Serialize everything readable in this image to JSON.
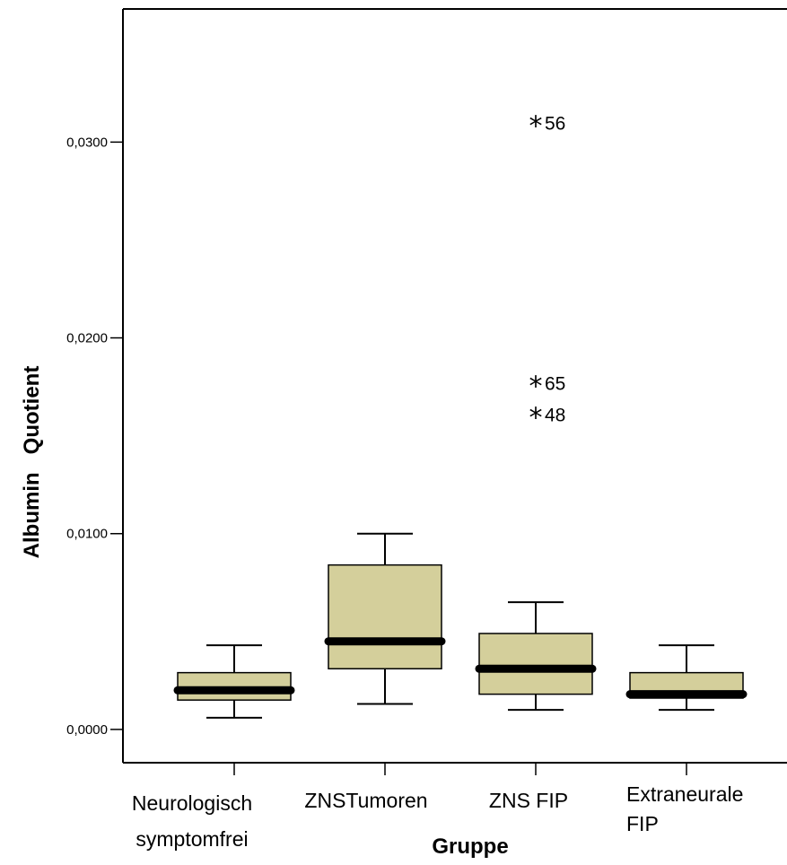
{
  "chart_data": {
    "type": "boxplot",
    "xlabel": "Gruppe",
    "ylabel": "Albumin   Quotient",
    "ylim": [
      -0.0017,
      0.0368
    ],
    "yticks": [
      0.0,
      0.01,
      0.02,
      0.03
    ],
    "ytick_labels": [
      "0,0000",
      "0,0100",
      "0,0200",
      "0,0300"
    ],
    "grid": false,
    "box_color": "#d4cf9b",
    "line_color": "#000000",
    "categories": [
      [
        "Neurologisch",
        "symptomfrei"
      ],
      [
        "ZNSTumoren"
      ],
      [
        "ZNS FIP"
      ],
      [
        "Extraneurale",
        "FIP"
      ]
    ],
    "boxes": [
      {
        "whisker_low": 0.0006,
        "q1": 0.0015,
        "median": 0.002,
        "q3": 0.0029,
        "whisker_high": 0.0043
      },
      {
        "whisker_low": 0.0013,
        "q1": 0.0031,
        "median": 0.0045,
        "q3": 0.0084,
        "whisker_high": 0.01
      },
      {
        "whisker_low": 0.001,
        "q1": 0.0018,
        "median": 0.0031,
        "q3": 0.0049,
        "whisker_high": 0.0065
      },
      {
        "whisker_low": 0.001,
        "q1": 0.0016,
        "median": 0.0018,
        "q3": 0.0029,
        "whisker_high": 0.0043
      }
    ],
    "outliers": [
      {
        "group": 2,
        "value": 0.0311,
        "label": "56",
        "marker": "*"
      },
      {
        "group": 2,
        "value": 0.0178,
        "label": "65",
        "marker": "*"
      },
      {
        "group": 2,
        "value": 0.0162,
        "label": "48",
        "marker": "*"
      }
    ]
  }
}
